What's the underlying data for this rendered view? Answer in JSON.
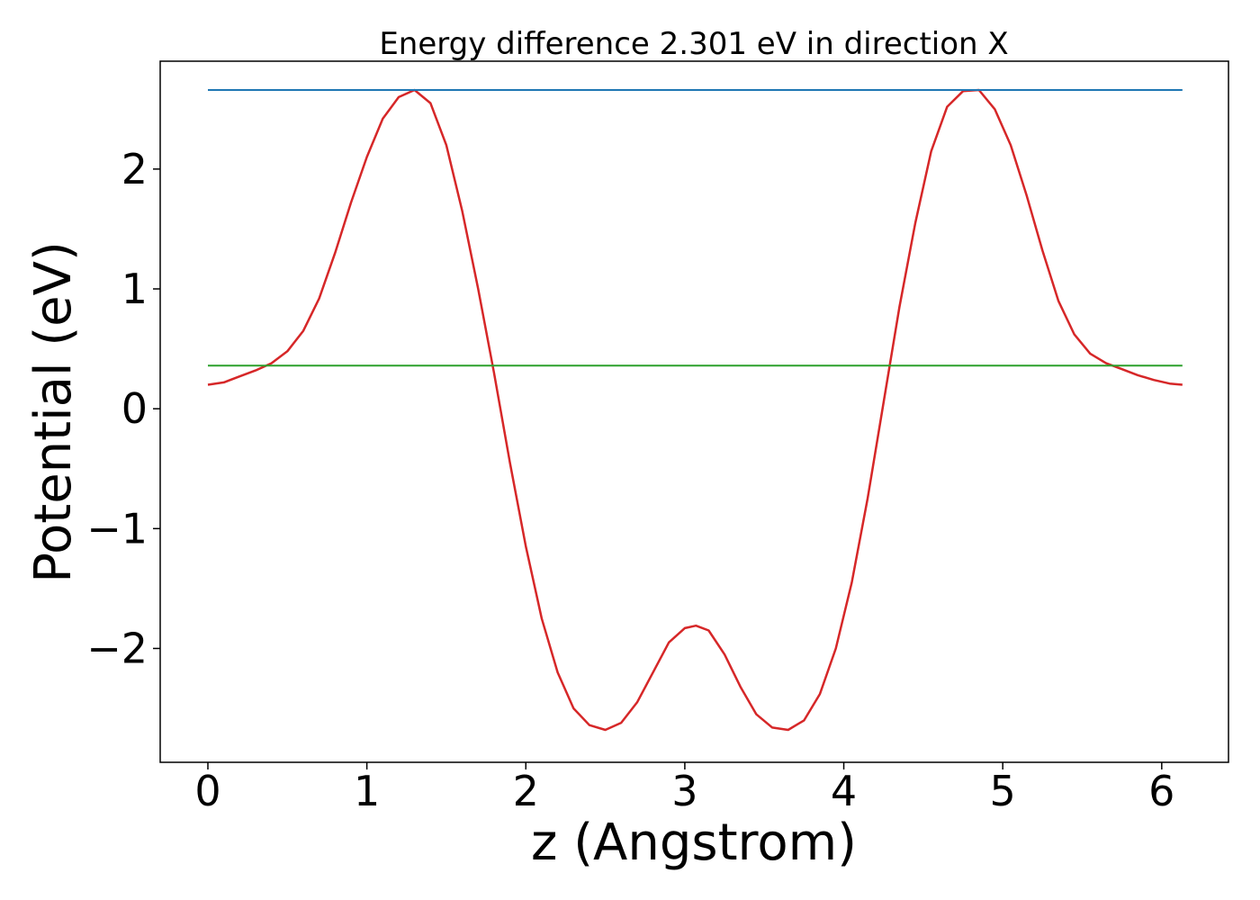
{
  "chart_data": {
    "type": "line",
    "title": "Energy difference 2.301 eV in direction X",
    "xlabel": "z (Angstrom)",
    "ylabel": "Potential (eV)",
    "xlim": [
      -0.3,
      6.42
    ],
    "ylim": [
      -2.95,
      2.9
    ],
    "xticks": [
      0,
      1,
      2,
      3,
      4,
      5,
      6
    ],
    "xtick_labels": [
      "0",
      "1",
      "2",
      "3",
      "4",
      "5",
      "6"
    ],
    "yticks": [
      -2,
      -1,
      0,
      1,
      2
    ],
    "ytick_labels": [
      "−2",
      "−1",
      "0",
      "1",
      "2"
    ],
    "grid": false,
    "series": [
      {
        "color": "#d62728",
        "x": [
          0,
          0.1,
          0.2,
          0.3,
          0.4,
          0.5,
          0.6,
          0.7,
          0.8,
          0.9,
          1.0,
          1.1,
          1.2,
          1.3,
          1.4,
          1.5,
          1.6,
          1.7,
          1.8,
          1.9,
          2.0,
          2.1,
          2.2,
          2.3,
          2.4,
          2.5,
          2.6,
          2.7,
          2.8,
          2.9,
          3.0,
          3.07,
          3.15,
          3.25,
          3.35,
          3.45,
          3.55,
          3.65,
          3.75,
          3.85,
          3.95,
          4.05,
          4.15,
          4.25,
          4.35,
          4.45,
          4.55,
          4.65,
          4.75,
          4.85,
          4.95,
          5.05,
          5.15,
          5.25,
          5.35,
          5.45,
          5.55,
          5.65,
          5.75,
          5.85,
          5.95,
          6.05,
          6.13
        ],
        "y": [
          0.2,
          0.22,
          0.27,
          0.32,
          0.38,
          0.48,
          0.65,
          0.92,
          1.3,
          1.72,
          2.1,
          2.42,
          2.6,
          2.66,
          2.55,
          2.2,
          1.65,
          1.0,
          0.3,
          -0.45,
          -1.15,
          -1.75,
          -2.2,
          -2.5,
          -2.64,
          -2.68,
          -2.62,
          -2.45,
          -2.2,
          -1.95,
          -1.83,
          -1.81,
          -1.85,
          -2.05,
          -2.32,
          -2.55,
          -2.66,
          -2.68,
          -2.6,
          -2.38,
          -2.0,
          -1.45,
          -0.75,
          0.05,
          0.85,
          1.55,
          2.15,
          2.52,
          2.65,
          2.66,
          2.5,
          2.2,
          1.78,
          1.32,
          0.9,
          0.62,
          0.46,
          0.38,
          0.33,
          0.28,
          0.24,
          0.21,
          0.2
        ]
      },
      {
        "color": "#1f77b4",
        "x": [
          0,
          6.13
        ],
        "y": [
          2.66,
          2.66
        ]
      },
      {
        "color": "#2ca02c",
        "x": [
          0,
          6.13
        ],
        "y": [
          0.36,
          0.36
        ]
      }
    ]
  }
}
